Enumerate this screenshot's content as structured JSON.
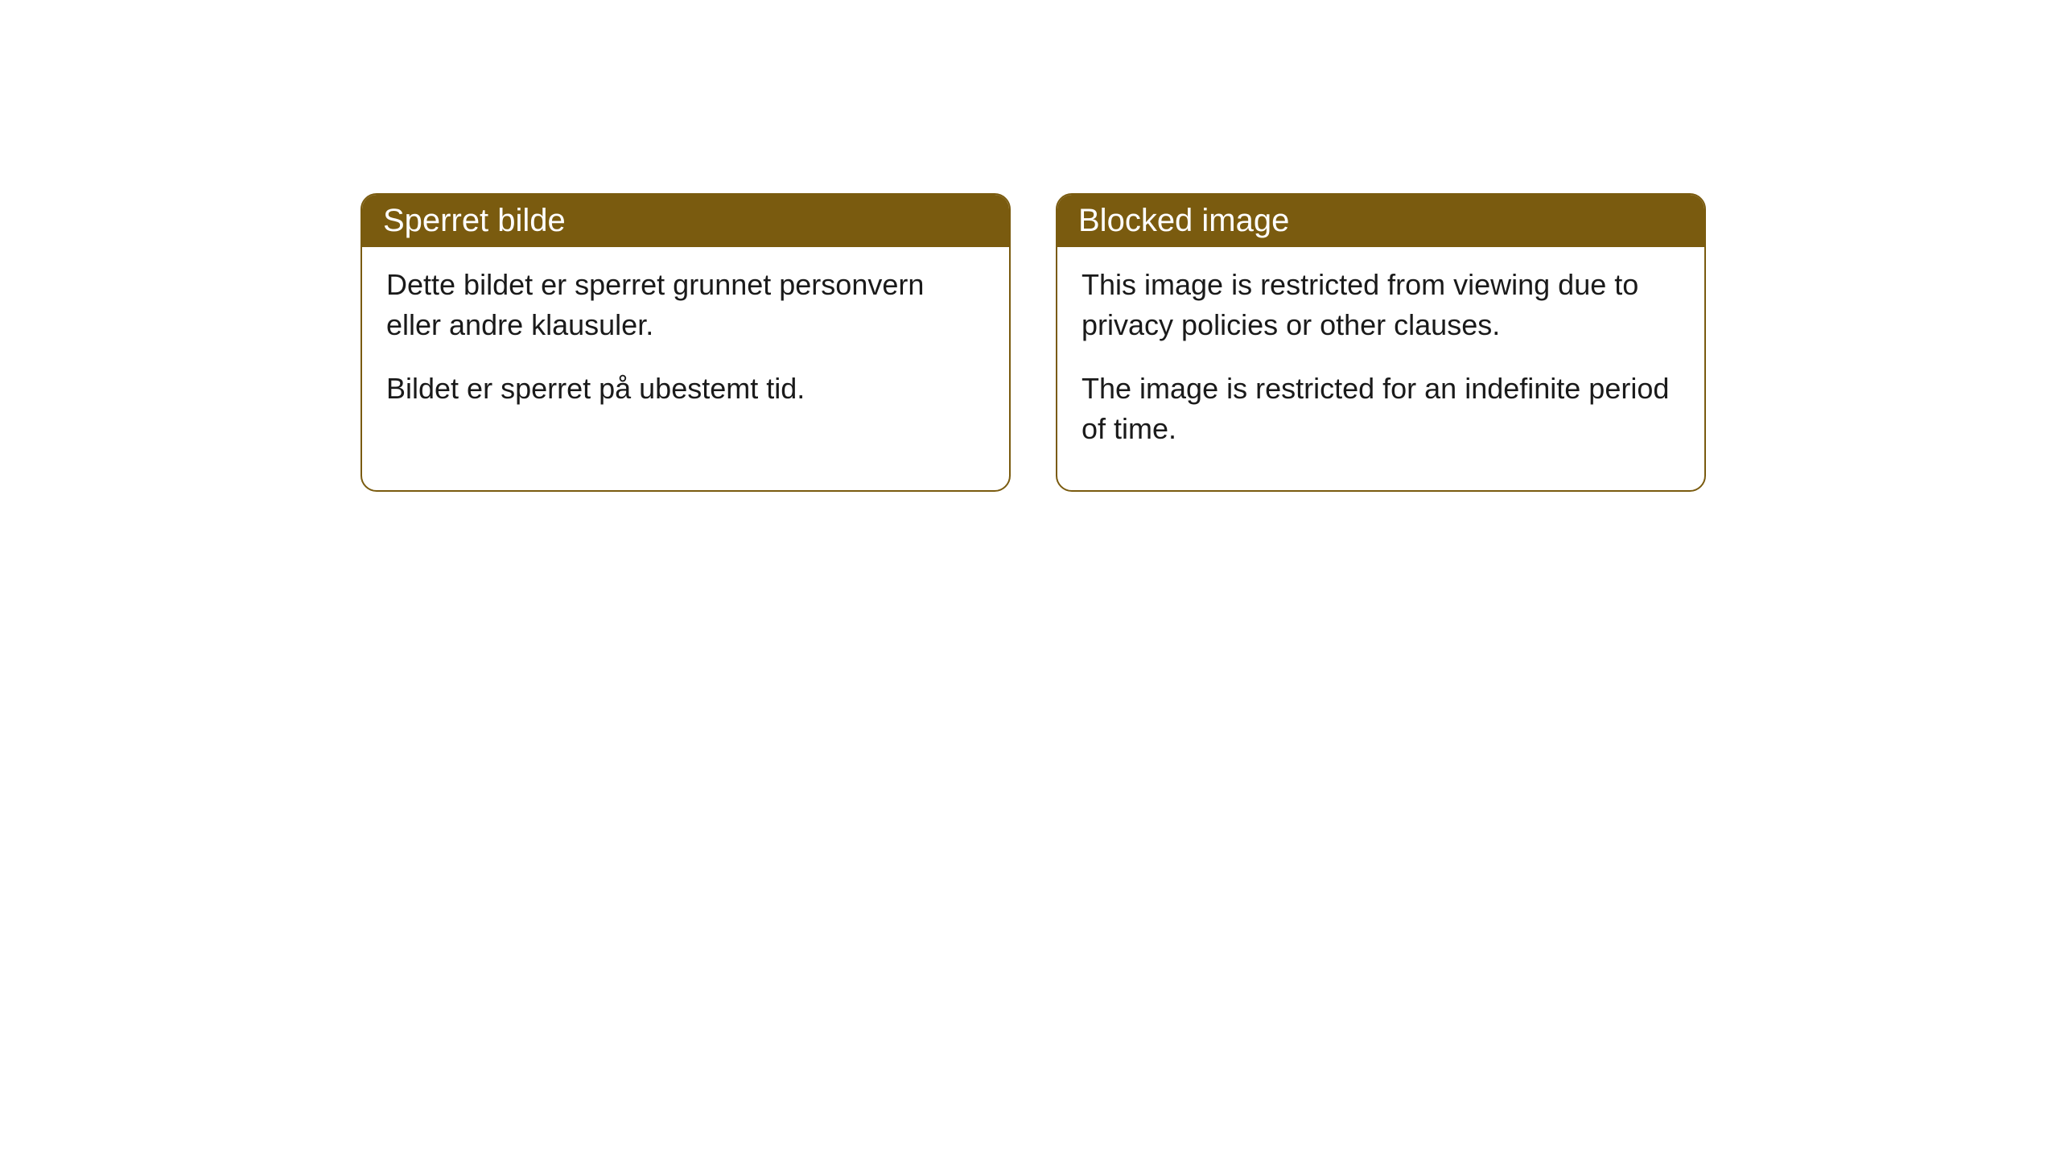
{
  "cards": [
    {
      "title": "Sperret bilde",
      "paragraph1": "Dette bildet er sperret grunnet personvern eller andre klausuler.",
      "paragraph2": "Bildet er sperret på ubestemt tid."
    },
    {
      "title": "Blocked image",
      "paragraph1": "This image is restricted from viewing due to privacy policies or other clauses.",
      "paragraph2": "The image is restricted for an indefinite period of time."
    }
  ],
  "style": {
    "header_bg": "#7a5b0f",
    "header_text_color": "#ffffff",
    "border_color": "#7a5b0f",
    "body_bg": "#ffffff",
    "body_text_color": "#1a1a1a",
    "border_radius": 20,
    "title_fontsize": 40,
    "body_fontsize": 36
  }
}
